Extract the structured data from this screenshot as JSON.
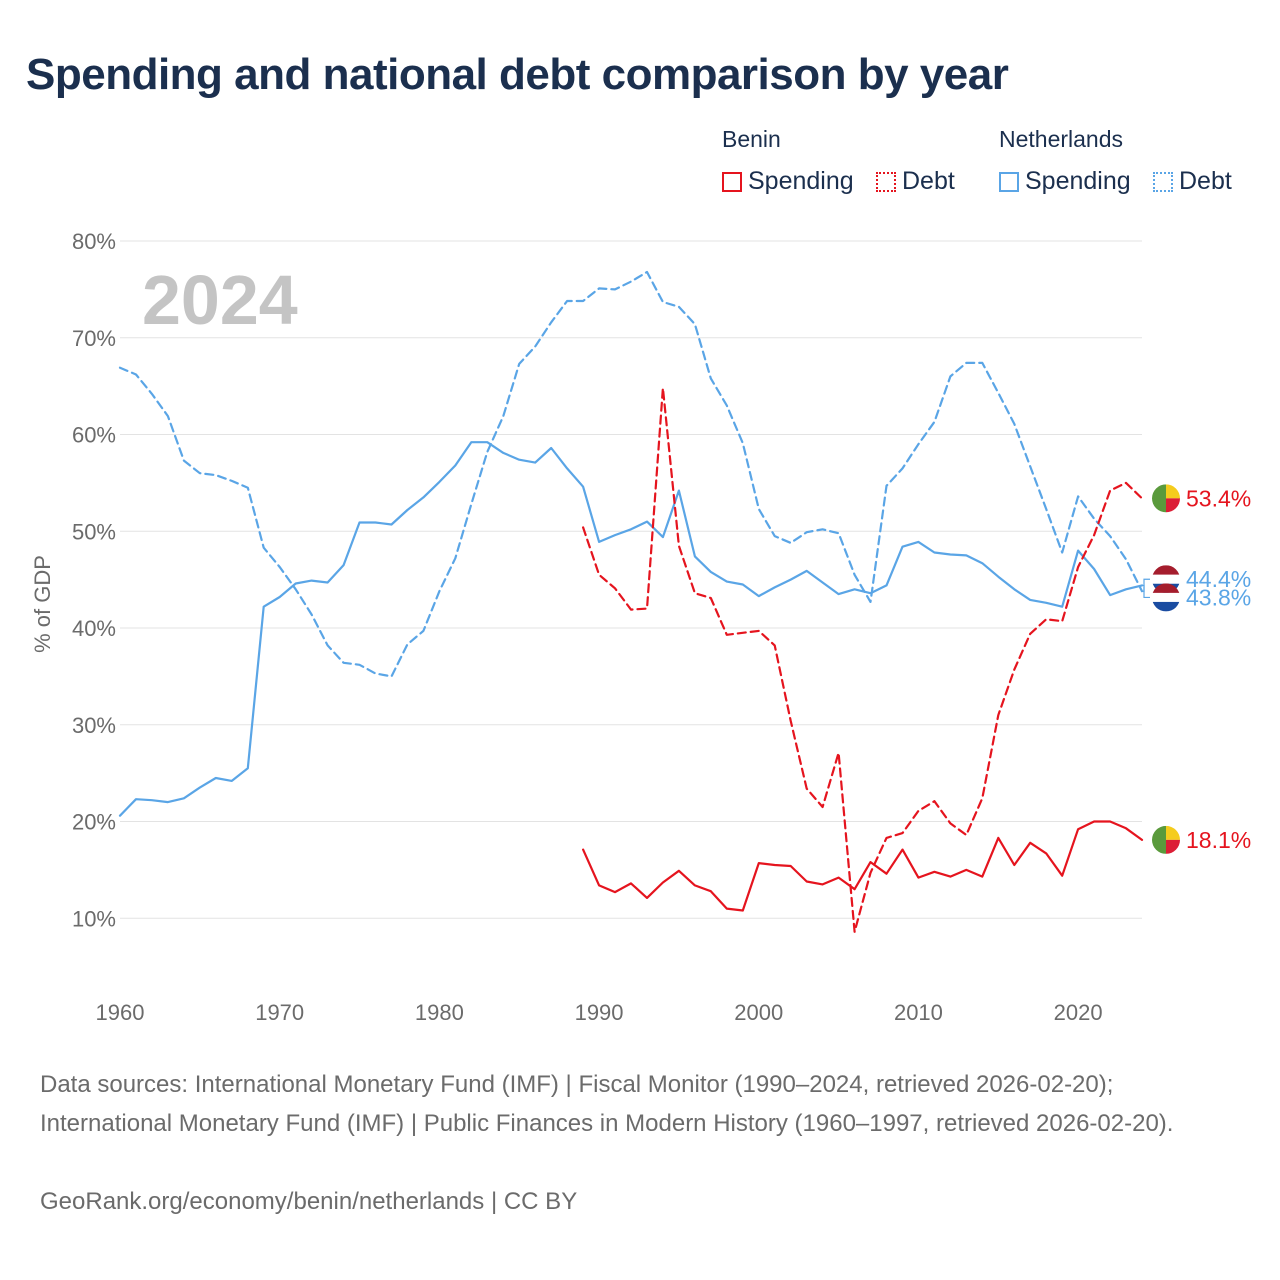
{
  "title": "Spending and national debt comparison by year",
  "legend": {
    "groups": [
      {
        "name": "Benin",
        "items": [
          {
            "label": "Spending",
            "style": "solid",
            "color": "#e5141e"
          },
          {
            "label": "Debt",
            "style": "dotted",
            "color": "#e5141e"
          }
        ]
      },
      {
        "name": "Netherlands",
        "items": [
          {
            "label": "Spending",
            "style": "solid",
            "color": "#5aa5e6"
          },
          {
            "label": "Debt",
            "style": "dotted",
            "color": "#5aa5e6"
          }
        ]
      }
    ]
  },
  "footer": {
    "sources": "Data sources: International Monetary Fund (IMF) | Fiscal Monitor (1990–2024, retrieved 2026-02-20); International Monetary Fund (IMF) | Public Finances in Modern History (1960–1997, retrieved 2026-02-20).",
    "credit": "GeoRank.org/economy/benin/netherlands | CC BY"
  },
  "chart_data": {
    "type": "line",
    "year_label": "2024",
    "ylabel": "% of GDP",
    "xlim": [
      1960,
      2024
    ],
    "ylim": [
      0,
      80
    ],
    "x_ticks": [
      1960,
      1970,
      1980,
      1990,
      2000,
      2010,
      2020
    ],
    "y_ticks": [
      {
        "value": 10,
        "label": "10%"
      },
      {
        "value": 20,
        "label": "20%"
      },
      {
        "value": 30,
        "label": "30%"
      },
      {
        "value": 40,
        "label": "40%"
      },
      {
        "value": 50,
        "label": "50%"
      },
      {
        "value": 60,
        "label": "60%"
      },
      {
        "value": 70,
        "label": "70%"
      },
      {
        "value": 80,
        "label": "80%"
      }
    ],
    "grid": true,
    "series": [
      {
        "name": "Netherlands Spending",
        "country": "Netherlands",
        "metric": "Spending",
        "color": "#5aa5e6",
        "dashed": false,
        "start_year": 1960,
        "end_label": "43.8%",
        "values": [
          20.6,
          22.3,
          22.2,
          22.0,
          22.4,
          23.5,
          24.5,
          24.2,
          25.5,
          42.2,
          43.2,
          44.6,
          44.9,
          44.7,
          46.5,
          50.9,
          50.9,
          50.7,
          52.2,
          53.5,
          55.1,
          56.8,
          59.2,
          59.2,
          58.1,
          57.4,
          57.1,
          58.6,
          56.5,
          54.6,
          48.9,
          49.6,
          50.2,
          51.0,
          49.4,
          54.2,
          47.4,
          45.8,
          44.8,
          44.5,
          43.3,
          44.2,
          45.0,
          45.9,
          44.7,
          43.5,
          44.0,
          43.6,
          44.4,
          48.4,
          48.9,
          47.8,
          47.6,
          47.5,
          46.7,
          45.3,
          44.0,
          42.9,
          42.6,
          42.2,
          48.0,
          46.1,
          43.4,
          44.0,
          44.4
        ]
      },
      {
        "name": "Netherlands Debt",
        "country": "Netherlands",
        "metric": "Debt",
        "color": "#5aa5e6",
        "dashed": true,
        "start_year": 1960,
        "end_label": "44.4%",
        "values": [
          66.9,
          66.2,
          64.2,
          61.9,
          57.3,
          56.0,
          55.8,
          55.2,
          54.5,
          48.3,
          46.3,
          44.0,
          41.4,
          38.2,
          36.4,
          36.2,
          35.3,
          35.0,
          38.3,
          39.7,
          43.8,
          47.2,
          52.8,
          58.2,
          61.9,
          67.3,
          69.1,
          71.6,
          73.8,
          73.8,
          75.1,
          75.0,
          75.8,
          76.8,
          73.7,
          73.2,
          71.4,
          65.8,
          63.0,
          59.1,
          52.3,
          49.5,
          48.8,
          49.9,
          50.2,
          49.8,
          45.5,
          42.7,
          54.7,
          56.5,
          59.0,
          61.3,
          66.0,
          67.4,
          67.4,
          64.3,
          61.1,
          56.7,
          52.3,
          47.8,
          53.6,
          51.3,
          49.5,
          47.1,
          43.8
        ]
      },
      {
        "name": "Benin Spending",
        "country": "Benin",
        "metric": "Spending",
        "color": "#e5141e",
        "dashed": false,
        "start_year": 1989,
        "end_label": "18.1%",
        "values": [
          17.1,
          13.4,
          12.7,
          13.6,
          12.1,
          13.7,
          14.9,
          13.4,
          12.8,
          11.0,
          10.8,
          15.7,
          15.5,
          15.4,
          13.8,
          13.5,
          14.2,
          13.0,
          15.8,
          14.6,
          17.1,
          14.2,
          14.8,
          14.3,
          15.0,
          14.3,
          18.3,
          15.5,
          17.8,
          16.7,
          14.4,
          19.2,
          20.0,
          20.0,
          19.3,
          18.1
        ]
      },
      {
        "name": "Benin Debt",
        "country": "Benin",
        "metric": "Debt",
        "color": "#e5141e",
        "dashed": true,
        "start_year": 1989,
        "end_label": "53.4%",
        "values": [
          50.4,
          45.5,
          44.1,
          41.9,
          42.0,
          64.8,
          48.5,
          43.6,
          43.1,
          39.3,
          39.5,
          39.7,
          38.2,
          30.4,
          23.4,
          21.5,
          27.1,
          8.6,
          14.7,
          18.3,
          18.8,
          21.1,
          22.1,
          19.8,
          18.6,
          22.4,
          31.0,
          35.7,
          39.4,
          40.9,
          40.7,
          46.3,
          49.6,
          54.2,
          55.0,
          53.4
        ]
      }
    ]
  }
}
